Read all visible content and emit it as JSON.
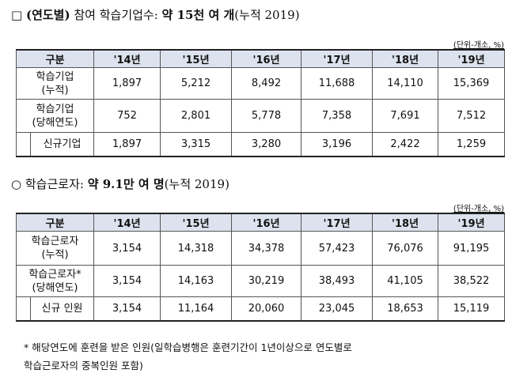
{
  "heading1": {
    "bullet": "□",
    "parts": [
      {
        "text": "(연도별)",
        "bold": true
      },
      {
        "text": " 참여 학습기업수: ",
        "bold": false
      },
      {
        "text": "약 15천 여 개",
        "bold": true
      },
      {
        "text": "(누적 2019)",
        "bold": false
      }
    ]
  },
  "table1": {
    "unit": "(단위-개소, %)",
    "header": [
      "구분",
      "'14년",
      "'15년",
      "'16년",
      "'17년",
      "'18년",
      "'19년"
    ],
    "rows": [
      {
        "label": [
          "학습기업",
          "(누적)"
        ],
        "indent": false,
        "cells": [
          "1,897",
          "5,212",
          "8,492",
          "11,688",
          "14,110",
          "15,369"
        ]
      },
      {
        "label": [
          "학습기업",
          "(당해연도)"
        ],
        "indent": false,
        "cells": [
          "752",
          "2,801",
          "5,778",
          "7,358",
          "7,691",
          "7,512"
        ]
      },
      {
        "label": [
          "신규기업"
        ],
        "indent": true,
        "cells": [
          "1,897",
          "3,315",
          "3,280",
          "3,196",
          "2,422",
          "1,259"
        ]
      }
    ]
  },
  "heading2": {
    "bullet": "○",
    "parts": [
      {
        "text": "학습근로자: ",
        "bold": false
      },
      {
        "text": "약 9.1만 여 명",
        "bold": true
      },
      {
        "text": "(누적 2019)",
        "bold": false
      }
    ]
  },
  "table2": {
    "unit": "(단위-개소, %)",
    "header": [
      "구분",
      "'14년",
      "'15년",
      "'16년",
      "'17년",
      "'18년",
      "'19년"
    ],
    "rows": [
      {
        "label": [
          "학습근로자",
          "(누적)"
        ],
        "indent": false,
        "cells": [
          "3,154",
          "14,318",
          "34,378",
          "57,423",
          "76,076",
          "91,195"
        ]
      },
      {
        "label": [
          "학습근로자*",
          "(당해연도)"
        ],
        "indent": false,
        "cells": [
          "3,154",
          "14,163",
          "30,219",
          "38,493",
          "41,105",
          "38,522"
        ]
      },
      {
        "label": [
          "신규 인원"
        ],
        "indent": true,
        "cells": [
          "3,154",
          "11,164",
          "20,060",
          "23,045",
          "18,653",
          "15,119"
        ]
      }
    ]
  },
  "footnote": [
    "* 해당연도에 훈련을 받은 인원(일학습병행은 훈련기간이 1년이상으로 연도별로",
    "학습근로자의 중복인원 포함)"
  ]
}
